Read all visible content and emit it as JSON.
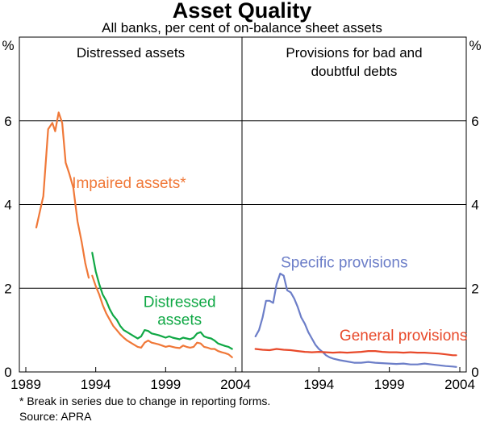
{
  "chart_data": {
    "type": "line",
    "title": "Asset Quality",
    "subtitle": "All banks, per cent of on-balance sheet assets",
    "y_unit_label": "%",
    "ylim": [
      0,
      8
    ],
    "y_ticks": [
      0,
      2,
      4,
      6
    ],
    "grid": true,
    "panels": [
      {
        "title_lines": [
          "Distressed assets"
        ],
        "x_range": [
          1989,
          2004
        ],
        "x_ticks": [
          1989,
          1994,
          1999,
          2004
        ],
        "series": [
          {
            "name": "Impaired assets*",
            "color": "#f07838",
            "points": [
              [
                1989.75,
                3.45
              ],
              [
                1990.25,
                4.2
              ],
              [
                1990.6,
                5.8
              ],
              [
                1990.9,
                5.95
              ],
              [
                1991.1,
                5.75
              ],
              [
                1991.35,
                6.2
              ],
              [
                1991.6,
                5.95
              ],
              [
                1991.85,
                5.0
              ],
              [
                1992.1,
                4.75
              ],
              [
                1992.4,
                4.4
              ],
              [
                1992.7,
                3.6
              ],
              [
                1993.0,
                3.1
              ],
              [
                1993.25,
                2.6
              ],
              [
                1993.5,
                2.25
              ]
            ]
          },
          {
            "name": "Impaired assets* (after break)",
            "color": "#f07838",
            "points": [
              [
                1993.75,
                2.3
              ],
              [
                1994.0,
                2.05
              ],
              [
                1994.25,
                1.85
              ],
              [
                1994.5,
                1.6
              ],
              [
                1994.75,
                1.4
              ],
              [
                1995.0,
                1.25
              ],
              [
                1995.25,
                1.1
              ],
              [
                1995.5,
                1.0
              ],
              [
                1995.75,
                0.9
              ],
              [
                1996.0,
                0.82
              ],
              [
                1996.25,
                0.75
              ],
              [
                1996.5,
                0.7
              ],
              [
                1996.75,
                0.65
              ],
              [
                1997.0,
                0.6
              ],
              [
                1997.25,
                0.58
              ],
              [
                1997.5,
                0.7
              ],
              [
                1997.75,
                0.75
              ],
              [
                1998.0,
                0.7
              ],
              [
                1998.25,
                0.68
              ],
              [
                1998.5,
                0.66
              ],
              [
                1998.75,
                0.63
              ],
              [
                1999.0,
                0.6
              ],
              [
                1999.25,
                0.62
              ],
              [
                1999.5,
                0.6
              ],
              [
                1999.75,
                0.58
              ],
              [
                2000.0,
                0.57
              ],
              [
                2000.25,
                0.63
              ],
              [
                2000.5,
                0.6
              ],
              [
                2000.75,
                0.58
              ],
              [
                2001.0,
                0.6
              ],
              [
                2001.25,
                0.7
              ],
              [
                2001.5,
                0.68
              ],
              [
                2001.75,
                0.6
              ],
              [
                2002.0,
                0.58
              ],
              [
                2002.25,
                0.55
              ],
              [
                2002.5,
                0.55
              ],
              [
                2002.75,
                0.5
              ],
              [
                2003.0,
                0.47
              ],
              [
                2003.25,
                0.45
              ],
              [
                2003.5,
                0.42
              ],
              [
                2003.75,
                0.35
              ]
            ]
          },
          {
            "name": "Distressed assets",
            "color": "#10a845",
            "points": [
              [
                1993.75,
                2.85
              ],
              [
                1994.0,
                2.4
              ],
              [
                1994.25,
                2.1
              ],
              [
                1994.5,
                1.85
              ],
              [
                1994.75,
                1.7
              ],
              [
                1995.0,
                1.5
              ],
              [
                1995.25,
                1.35
              ],
              [
                1995.5,
                1.25
              ],
              [
                1995.75,
                1.1
              ],
              [
                1996.0,
                1.0
              ],
              [
                1996.25,
                0.95
              ],
              [
                1996.5,
                0.9
              ],
              [
                1996.75,
                0.85
              ],
              [
                1997.0,
                0.8
              ],
              [
                1997.25,
                0.85
              ],
              [
                1997.5,
                1.0
              ],
              [
                1997.75,
                0.98
              ],
              [
                1998.0,
                0.92
              ],
              [
                1998.25,
                0.9
              ],
              [
                1998.5,
                0.88
              ],
              [
                1998.75,
                0.85
              ],
              [
                1999.0,
                0.82
              ],
              [
                1999.25,
                0.85
              ],
              [
                1999.5,
                0.82
              ],
              [
                1999.75,
                0.8
              ],
              [
                2000.0,
                0.78
              ],
              [
                2000.25,
                0.82
              ],
              [
                2000.5,
                0.8
              ],
              [
                2000.75,
                0.78
              ],
              [
                2001.0,
                0.82
              ],
              [
                2001.25,
                0.92
              ],
              [
                2001.5,
                0.95
              ],
              [
                2001.75,
                0.85
              ],
              [
                2002.0,
                0.82
              ],
              [
                2002.25,
                0.8
              ],
              [
                2002.5,
                0.75
              ],
              [
                2002.75,
                0.68
              ],
              [
                2003.0,
                0.65
              ],
              [
                2003.25,
                0.62
              ],
              [
                2003.5,
                0.6
              ],
              [
                2003.75,
                0.55
              ]
            ]
          }
        ],
        "annotations": [
          {
            "lines": [
              "Impaired assets*"
            ],
            "color": "#f07838",
            "x": 1992.3,
            "y": 4.4,
            "anchor": "start"
          },
          {
            "lines": [
              "Distressed",
              "assets"
            ],
            "color": "#10a845",
            "x": 2000.0,
            "y": 1.55,
            "anchor": "middle"
          }
        ]
      },
      {
        "title_lines": [
          "Provisions for bad and",
          "doubtful debts"
        ],
        "x_range": [
          1989,
          2004
        ],
        "x_ticks": [
          1994,
          1999,
          2004
        ],
        "series": [
          {
            "name": "Specific provisions",
            "color": "#6c7ec8",
            "points": [
              [
                1989.5,
                0.85
              ],
              [
                1989.75,
                1.0
              ],
              [
                1990.0,
                1.3
              ],
              [
                1990.25,
                1.7
              ],
              [
                1990.5,
                1.7
              ],
              [
                1990.75,
                1.65
              ],
              [
                1991.0,
                2.1
              ],
              [
                1991.25,
                2.35
              ],
              [
                1991.5,
                2.3
              ],
              [
                1991.75,
                1.95
              ],
              [
                1992.0,
                1.9
              ],
              [
                1992.25,
                1.75
              ],
              [
                1992.5,
                1.55
              ],
              [
                1992.75,
                1.3
              ],
              [
                1993.0,
                1.15
              ],
              [
                1993.25,
                0.95
              ],
              [
                1993.5,
                0.8
              ],
              [
                1993.75,
                0.65
              ],
              [
                1994.0,
                0.55
              ],
              [
                1994.25,
                0.48
              ],
              [
                1994.5,
                0.4
              ],
              [
                1994.75,
                0.35
              ],
              [
                1995.0,
                0.32
              ],
              [
                1995.5,
                0.28
              ],
              [
                1996.0,
                0.25
              ],
              [
                1996.5,
                0.22
              ],
              [
                1997.0,
                0.22
              ],
              [
                1997.5,
                0.24
              ],
              [
                1998.0,
                0.22
              ],
              [
                1998.5,
                0.21
              ],
              [
                1999.0,
                0.2
              ],
              [
                1999.5,
                0.19
              ],
              [
                2000.0,
                0.2
              ],
              [
                2000.5,
                0.18
              ],
              [
                2001.0,
                0.18
              ],
              [
                2001.5,
                0.2
              ],
              [
                2002.0,
                0.18
              ],
              [
                2002.5,
                0.16
              ],
              [
                2003.0,
                0.14
              ],
              [
                2003.5,
                0.13
              ],
              [
                2003.75,
                0.12
              ]
            ]
          },
          {
            "name": "General provisions",
            "color": "#e8492a",
            "points": [
              [
                1989.5,
                0.55
              ],
              [
                1990.0,
                0.53
              ],
              [
                1990.5,
                0.52
              ],
              [
                1991.0,
                0.55
              ],
              [
                1991.5,
                0.53
              ],
              [
                1992.0,
                0.52
              ],
              [
                1992.5,
                0.5
              ],
              [
                1993.0,
                0.48
              ],
              [
                1993.5,
                0.47
              ],
              [
                1994.0,
                0.48
              ],
              [
                1994.5,
                0.47
              ],
              [
                1995.0,
                0.46
              ],
              [
                1995.5,
                0.47
              ],
              [
                1996.0,
                0.46
              ],
              [
                1996.5,
                0.47
              ],
              [
                1997.0,
                0.48
              ],
              [
                1997.5,
                0.5
              ],
              [
                1998.0,
                0.5
              ],
              [
                1998.5,
                0.48
              ],
              [
                1999.0,
                0.47
              ],
              [
                1999.5,
                0.47
              ],
              [
                2000.0,
                0.46
              ],
              [
                2000.5,
                0.47
              ],
              [
                2001.0,
                0.46
              ],
              [
                2001.5,
                0.46
              ],
              [
                2002.0,
                0.45
              ],
              [
                2002.5,
                0.44
              ],
              [
                2003.0,
                0.42
              ],
              [
                2003.5,
                0.4
              ],
              [
                2003.75,
                0.4
              ]
            ]
          }
        ],
        "annotations": [
          {
            "lines": [
              "Specific provisions"
            ],
            "color": "#6c7ec8",
            "x": 1995.8,
            "y": 2.5,
            "anchor": "middle"
          },
          {
            "lines": [
              "General provisions"
            ],
            "color": "#e8492a",
            "x": 2000.0,
            "y": 0.75,
            "anchor": "middle"
          }
        ]
      }
    ],
    "footnotes": [
      "* Break in series due to change in reporting forms.",
      "Source: APRA"
    ]
  }
}
